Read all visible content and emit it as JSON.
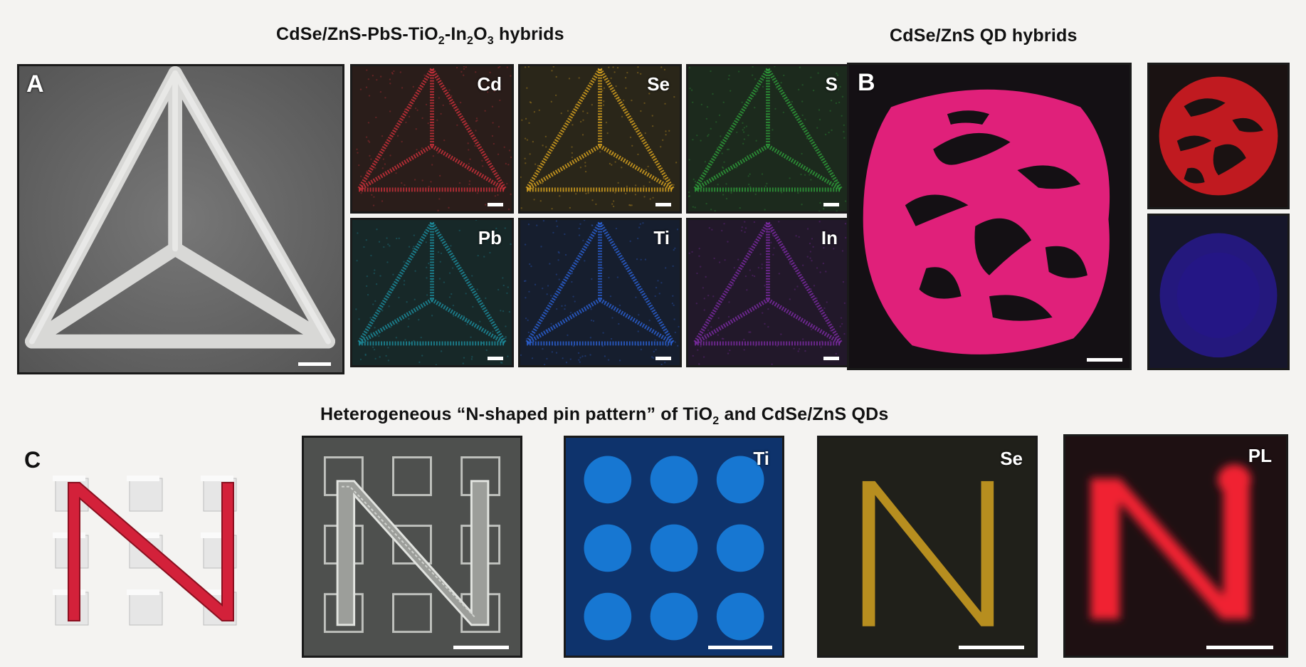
{
  "titles": {
    "hybrids_a_parts": [
      "CdSe/ZnS-PbS-TiO",
      "2",
      "-In",
      "2",
      "O",
      "3",
      " hybrids"
    ],
    "hybrids_b": "CdSe/ZnS QD hybrids",
    "pattern_c_parts": [
      "Heterogeneous “N-shaped pin pattern” of TiO",
      "2",
      " and CdSe/ZnS QDs"
    ]
  },
  "panel_labels": {
    "a": "A",
    "b": "B",
    "c": "C"
  },
  "element_maps": [
    {
      "label": "Cd",
      "color": "#c8303a",
      "bg": "#2a1d1a"
    },
    {
      "label": "Se",
      "color": "#d4a020",
      "bg": "#2a2619"
    },
    {
      "label": "S",
      "color": "#2e9a3a",
      "bg": "#1c2a1d"
    },
    {
      "label": "Pb",
      "color": "#1c8a9a",
      "bg": "#172828"
    },
    {
      "label": "Ti",
      "color": "#2a5fd0",
      "bg": "#161e2e"
    },
    {
      "label": "In",
      "color": "#7a2aa0",
      "bg": "#22182a"
    }
  ],
  "c_panels": [
    {
      "label": "Ti",
      "color": "#1a8ef0"
    },
    {
      "label": "Se",
      "color": "#c89a20"
    },
    {
      "label": "PL",
      "color": "#f02030"
    }
  ],
  "colors": {
    "magenta": "#e0207a",
    "red": "#c01a20",
    "blue": "#2a1a9a"
  }
}
